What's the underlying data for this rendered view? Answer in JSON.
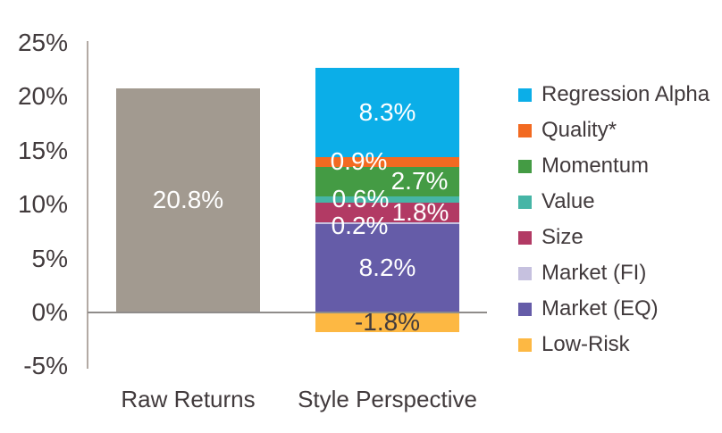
{
  "chart_data": {
    "type": "bar",
    "subtype": "stacked",
    "title": "",
    "grid": "off",
    "legend_position": "right",
    "categories": [
      "Raw Returns",
      "Style Perspective"
    ],
    "y_axis": {
      "unit": "%",
      "min": -5,
      "max": 25,
      "tick_step": 5,
      "ticks": [
        25,
        20,
        15,
        10,
        5,
        0,
        -5
      ],
      "tick_labels": [
        "25%",
        "20%",
        "15%",
        "10%",
        "5%",
        "0%",
        "-5%"
      ]
    },
    "bars": [
      {
        "category": "Raw Returns",
        "segments": [
          {
            "name": "Raw Returns",
            "value": 20.8,
            "label": "20.8%",
            "color": "#a29a90",
            "label_color": "#ffffff",
            "label_dx": 0,
            "label_dy": 0,
            "pattern": "solid"
          }
        ]
      },
      {
        "category": "Style Perspective",
        "segments": [
          {
            "name": "Regression Alpha",
            "value": 8.3,
            "label": "8.3%",
            "color": "#0baee8",
            "label_color": "#ffffff",
            "label_dx": 0,
            "label_dy": 0,
            "pattern": "solid"
          },
          {
            "name": "Quality*",
            "value": 0.9,
            "label": "0.9%",
            "color": "#f26a21",
            "label_color": "#ffffff",
            "label_dx": -32,
            "label_dy": 0,
            "pattern": "dots"
          },
          {
            "name": "Momentum",
            "value": 2.7,
            "label": "2.7%",
            "color": "#449b44",
            "label_color": "#ffffff",
            "label_dx": 36,
            "label_dy": 0,
            "pattern": "solid"
          },
          {
            "name": "Value",
            "value": 0.6,
            "label": "0.6%",
            "color": "#46b5a6",
            "label_color": "#ffffff",
            "label_dx": -30,
            "label_dy": 0,
            "pattern": "solid"
          },
          {
            "name": "Size",
            "value": 1.8,
            "label": "1.8%",
            "color": "#b23a64",
            "label_color": "#ffffff",
            "label_dx": 37,
            "label_dy": 0,
            "pattern": "solid"
          },
          {
            "name": "Market (FI)",
            "value": 0.2,
            "label": "0.2%",
            "color": "#c6c1df",
            "label_color": "#ffffff",
            "label_dx": -31,
            "label_dy": 3,
            "pattern": "solid"
          },
          {
            "name": "Market (EQ)",
            "value": 8.2,
            "label": "8.2%",
            "color": "#655ca8",
            "label_color": "#ffffff",
            "label_dx": 0,
            "label_dy": 0,
            "pattern": "solid"
          },
          {
            "name": "Low-Risk",
            "value": -1.8,
            "label": "-1.8%",
            "color": "#fdb843",
            "label_color": "#413a3c",
            "label_dx": 0,
            "label_dy": 0,
            "pattern": "solid"
          }
        ]
      }
    ],
    "legend": [
      {
        "label": "Regression Alpha",
        "color": "#0baee8"
      },
      {
        "label": "Quality*",
        "color": "#f26a21"
      },
      {
        "label": "Momentum",
        "color": "#449b44"
      },
      {
        "label": "Value",
        "color": "#46b5a6"
      },
      {
        "label": "Size",
        "color": "#b23a64"
      },
      {
        "label": "Market (FI)",
        "color": "#c6c1df"
      },
      {
        "label": "Market (EQ)",
        "color": "#655ca8"
      },
      {
        "label": "Low-Risk",
        "color": "#fdb843"
      }
    ],
    "colors": {
      "axis_text": "#413a3c",
      "axis_line": "#b3aaa4",
      "zero_line": "#8f8c8a",
      "bar_label_text": "#ffffff"
    }
  }
}
